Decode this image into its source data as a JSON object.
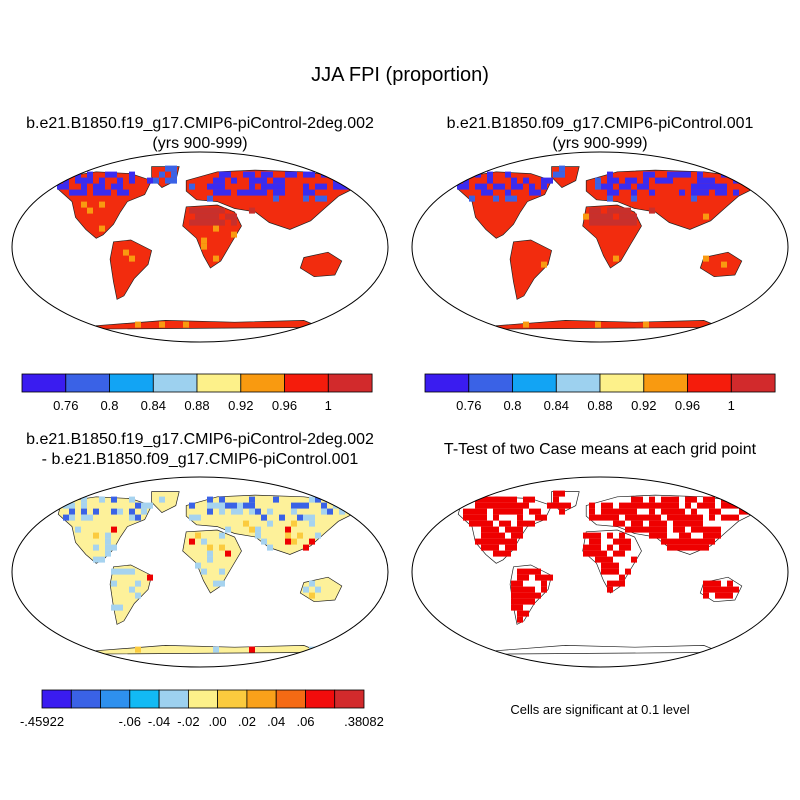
{
  "title": "JJA FPI (proportion)",
  "panels": [
    {
      "title_line1": "b.e21.B1850.f19_g17.CMIP6-piControl-2deg.002",
      "title_line2": "(yrs 900-999)"
    },
    {
      "title_line1": "b.e21.B1850.f09_g17.CMIP6-piControl.001",
      "title_line2": "(yrs 900-999)"
    },
    {
      "title_line1": "b.e21.B1850.f19_g17.CMIP6-piControl-2deg.002",
      "title_line2": "- b.e21.B1850.f09_g17.CMIP6-piControl.001"
    },
    {
      "title_line1": "T-Test of two Case means at each grid point"
    }
  ],
  "colorbars": {
    "case": {
      "colors": [
        "#3a1cf0",
        "#3a62e6",
        "#12a4f4",
        "#9dd1ef",
        "#fdf18a",
        "#f99a10",
        "#f51c0c",
        "#d22a2c"
      ],
      "labels": [
        "0.76",
        "0.8",
        "0.84",
        "0.88",
        "0.92",
        "0.96",
        "1"
      ]
    },
    "diff": {
      "colors": [
        "#3a1cf0",
        "#3a62e6",
        "#2e90ee",
        "#12baf4",
        "#9dd1ef",
        "#fdf18a",
        "#fbcb3e",
        "#f9a11a",
        "#f56a14",
        "#f20c0c",
        "#d22a2c"
      ],
      "labels": [
        "-.45922",
        "-.06",
        "-.04",
        "-.02",
        ".00",
        ".02",
        ".04",
        ".06",
        ".38082"
      ]
    }
  },
  "significance_note": "Cells are significant at 0.1 level",
  "colors": {
    "land_main": "#f22c0e",
    "land_dark": "#c8302c",
    "cold_blue": "#3a2cf0",
    "diff_land": "#fdf19a",
    "diff_light_blue": "#a6d3ef",
    "sig_red": "#ee0000"
  }
}
